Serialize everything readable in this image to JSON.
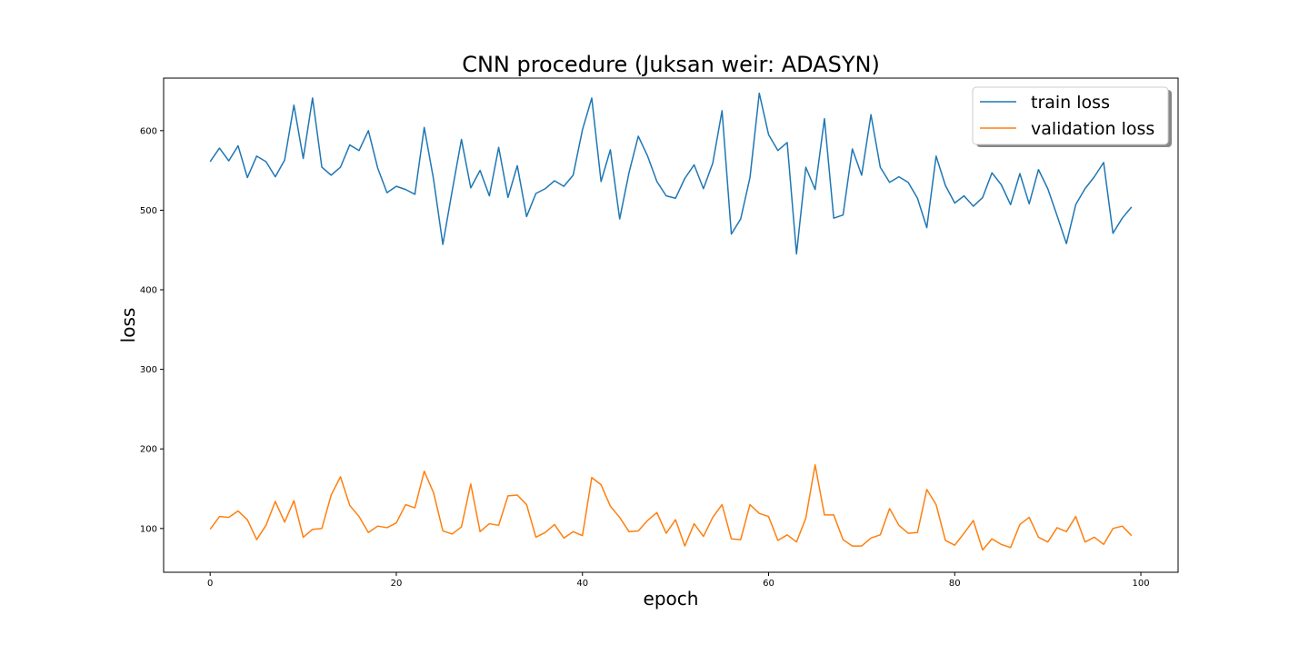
{
  "chart_data": {
    "type": "line",
    "title": "CNN procedure (Juksan weir: ADASYN)",
    "xlabel": "epoch",
    "ylabel": "loss",
    "xlim": [
      -5,
      104
    ],
    "ylim": [
      45,
      666
    ],
    "xticks": [
      0,
      20,
      40,
      60,
      80,
      100
    ],
    "yticks": [
      100,
      200,
      300,
      400,
      500,
      600
    ],
    "grid": false,
    "legend_position": "top-right",
    "colors": {
      "train loss": "#1f77b4",
      "validation loss": "#ff7f0e"
    },
    "x": [
      0,
      1,
      2,
      3,
      4,
      5,
      6,
      7,
      8,
      9,
      10,
      11,
      12,
      13,
      14,
      15,
      16,
      17,
      18,
      19,
      20,
      21,
      22,
      23,
      24,
      25,
      26,
      27,
      28,
      29,
      30,
      31,
      32,
      33,
      34,
      35,
      36,
      37,
      38,
      39,
      40,
      41,
      42,
      43,
      44,
      45,
      46,
      47,
      48,
      49,
      50,
      51,
      52,
      53,
      54,
      55,
      56,
      57,
      58,
      59,
      60,
      61,
      62,
      63,
      64,
      65,
      66,
      67,
      68,
      69,
      70,
      71,
      72,
      73,
      74,
      75,
      76,
      77,
      78,
      79,
      80,
      81,
      82,
      83,
      84,
      85,
      86,
      87,
      88,
      89,
      90,
      91,
      92,
      93,
      94,
      95,
      96,
      97,
      98,
      99
    ],
    "series": [
      {
        "name": "train loss",
        "values": [
          561,
          578,
          562,
          581,
          541,
          568,
          561,
          542,
          563,
          632,
          565,
          641,
          554,
          544,
          554,
          582,
          575,
          600,
          553,
          522,
          530,
          526,
          520,
          604,
          539,
          457,
          524,
          589,
          528,
          550,
          518,
          579,
          516,
          556,
          492,
          521,
          527,
          537,
          530,
          544,
          601,
          641,
          536,
          576,
          489,
          547,
          593,
          568,
          536,
          518,
          515,
          540,
          557,
          527,
          559,
          625,
          470,
          489,
          541,
          647,
          595,
          575,
          585,
          445,
          554,
          526,
          615,
          490,
          494,
          577,
          544,
          620,
          554,
          535,
          542,
          535,
          515,
          478,
          568,
          531,
          509,
          518,
          505,
          516,
          547,
          532,
          507,
          546,
          508,
          551,
          527,
          493,
          458,
          507,
          527,
          542,
          560,
          471,
          490,
          504
        ]
      },
      {
        "name": "validation loss",
        "values": [
          99,
          115,
          114,
          122,
          111,
          86,
          104,
          134,
          108,
          135,
          89,
          99,
          100,
          142,
          165,
          129,
          115,
          95,
          103,
          101,
          107,
          130,
          126,
          172,
          145,
          97,
          93,
          102,
          156,
          96,
          106,
          104,
          141,
          142,
          130,
          89,
          95,
          105,
          88,
          96,
          91,
          164,
          155,
          128,
          114,
          96,
          97,
          110,
          120,
          94,
          111,
          78,
          106,
          90,
          114,
          130,
          87,
          86,
          130,
          119,
          115,
          85,
          92,
          83,
          113,
          180,
          117,
          117,
          86,
          78,
          78,
          88,
          92,
          125,
          104,
          94,
          95,
          149,
          130,
          85,
          79,
          94,
          110,
          73,
          87,
          80,
          76,
          105,
          114,
          89,
          83,
          101,
          96,
          115,
          83,
          89,
          80,
          100,
          103,
          91
        ]
      }
    ]
  }
}
